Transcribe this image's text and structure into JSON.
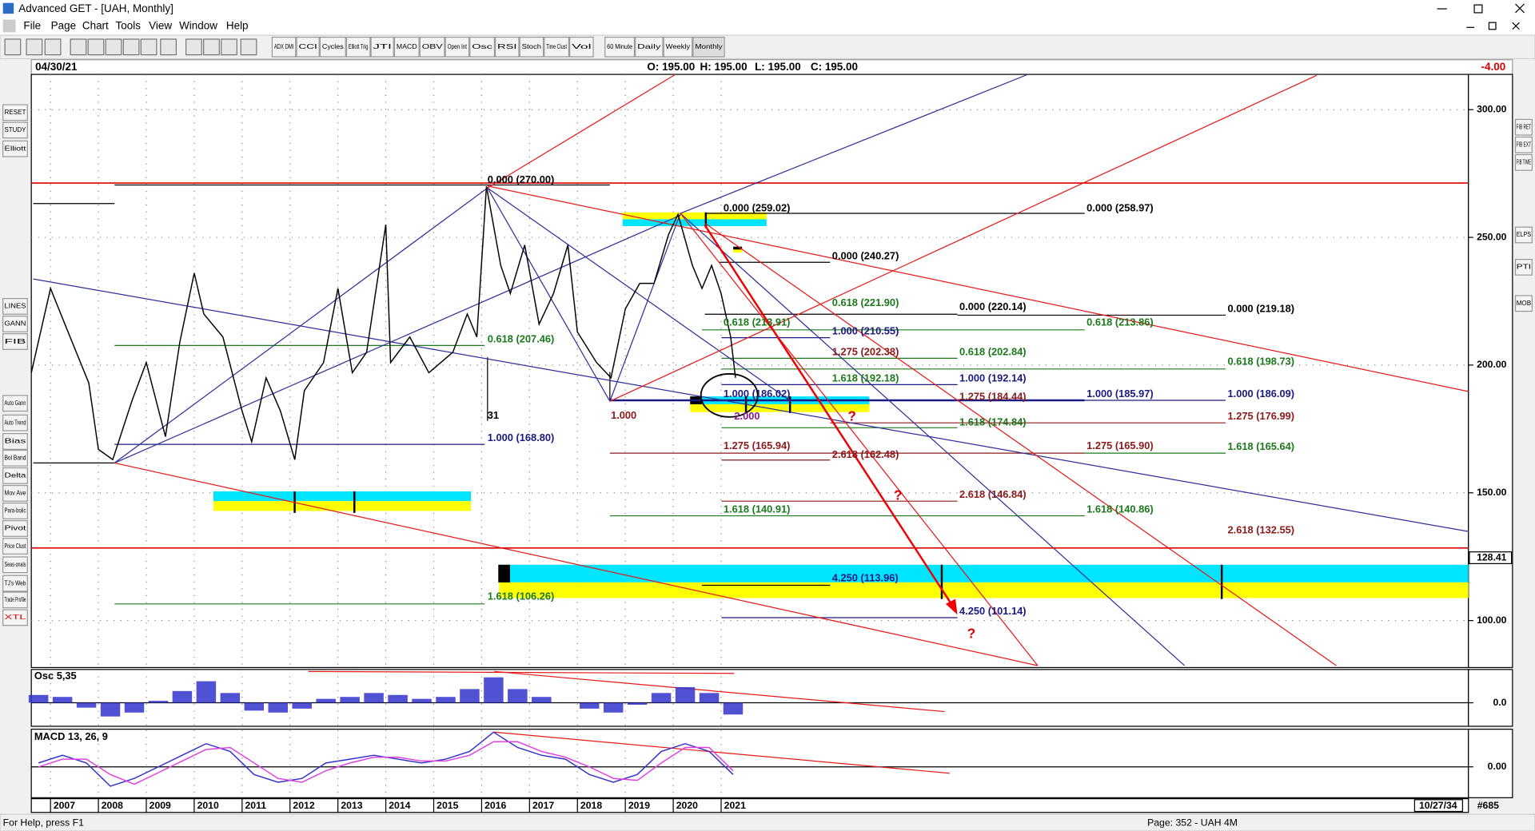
{
  "window": {
    "title": "Advanced GET - [UAH, Monthly]",
    "menu": [
      "File",
      "Page",
      "Chart",
      "Tools",
      "View",
      "Window",
      "Help"
    ]
  },
  "toolbar": {
    "buttons": [
      "ADX DMI",
      "CCI",
      "Cycles",
      "Elliott Trig",
      "JTI",
      "MACD",
      "OBV",
      "Open Int",
      "Osc",
      "RSI",
      "Stoch",
      "Time Clust",
      "Vol",
      "60 Minute",
      "Daily",
      "Weekly",
      "Monthly"
    ]
  },
  "left_toolbar": [
    "RESET",
    "STUDY",
    "Elliott",
    "LINES",
    "GANN",
    "FIB",
    "Auto Gann",
    "Auto Trend",
    "Bias",
    "Bol Band",
    "Delta",
    "Mov Ave",
    "Para-bolic",
    "Pivot",
    "Price Clust",
    "Seas-onals",
    "TJ's Web",
    "Trade Profile",
    "XTL"
  ],
  "right_toolbar": [
    "FIB RET",
    "FIB EXT",
    "FIB TIME",
    "ELPS",
    "PTI",
    "MOB"
  ],
  "header": {
    "date": "04/30/21",
    "open": "O: 195.00",
    "high": "H: 195.00",
    "low": "L: 195.00",
    "close": "C: 195.00",
    "change": "-4.00"
  },
  "chart_data": [
    {
      "type": "line",
      "color": "#000000",
      "x": [
        2006.6,
        2007.0,
        2007.3,
        2007.8,
        2008.0,
        2008.3,
        2008.7,
        2009.0,
        2009.4,
        2009.7,
        2010.0,
        2010.2,
        2010.6,
        2011.0,
        2011.2,
        2011.5,
        2011.8,
        2012.1,
        2012.3,
        2012.7,
        2013.0,
        2013.3,
        2013.6,
        2014.0,
        2014.1,
        2014.5,
        2014.9,
        2015.4,
        2015.7,
        2015.9,
        2016.1,
        2016.4,
        2016.6,
        2016.9,
        2017.2,
        2017.5,
        2017.8,
        2018.0,
        2018.4,
        2018.7,
        2019.0,
        2019.3,
        2019.6,
        2019.9,
        2020.1,
        2020.4,
        2020.6,
        2020.8,
        2021.0,
        2021.2,
        2021.3
      ],
      "values": [
        197,
        230,
        216,
        193,
        167,
        163,
        186,
        201,
        172,
        209,
        236,
        220,
        211,
        182,
        170,
        195,
        182,
        163,
        190,
        201,
        230,
        197,
        205,
        255,
        201,
        211,
        197,
        205,
        220,
        211,
        270,
        239,
        228,
        247,
        216,
        228,
        247,
        213,
        201,
        195,
        222,
        232,
        232,
        251,
        259,
        239,
        230,
        239,
        228,
        211,
        195
      ],
      "xlim": [
        2006.6,
        2036.6
      ],
      "xticks": [
        2007,
        2008,
        2009,
        2010,
        2011,
        2012,
        2013,
        2014,
        2015,
        2016,
        2017,
        2018,
        2019,
        2020,
        2021
      ],
      "ylim": [
        81.6,
        313.8
      ],
      "yticks": [
        {
          "value": 100,
          "label": "100.00"
        },
        {
          "value": 150,
          "label": "150.00"
        },
        {
          "value": 200,
          "label": "200.00"
        },
        {
          "value": 250,
          "label": "250.00"
        },
        {
          "value": 300,
          "label": "300.00"
        }
      ],
      "grid": true,
      "price_marker": 128.41
    },
    {
      "type": "bar",
      "title": "Osc 5,35",
      "color": "#3333cc",
      "x": [
        2006.75,
        2007.25,
        2007.75,
        2008.25,
        2008.75,
        2009.25,
        2009.75,
        2010.25,
        2010.75,
        2011.25,
        2011.75,
        2012.25,
        2012.75,
        2013.25,
        2013.75,
        2014.25,
        2014.75,
        2015.25,
        2015.75,
        2016.25,
        2016.75,
        2017.25,
        2017.75,
        2018.25,
        2018.75,
        2019.25,
        2019.75,
        2020.25,
        2020.75,
        2021.25
      ],
      "values": [
        8,
        6,
        -5,
        -14,
        -10,
        2,
        12,
        22,
        10,
        -8,
        -10,
        -6,
        4,
        6,
        10,
        8,
        4,
        6,
        14,
        26,
        14,
        6,
        0,
        -6,
        -10,
        -2,
        10,
        16,
        10,
        -12
      ],
      "ylim": [
        -24,
        34
      ],
      "yticks": [
        {
          "value": 0,
          "label": "0.0"
        }
      ]
    },
    {
      "type": "line",
      "title": "MACD 13, 26, 9",
      "x": [
        2006.75,
        2007.25,
        2007.75,
        2008.25,
        2008.75,
        2009.25,
        2009.75,
        2010.25,
        2010.75,
        2011.25,
        2011.75,
        2012.25,
        2012.75,
        2013.25,
        2013.75,
        2014.25,
        2014.75,
        2015.25,
        2015.75,
        2016.25,
        2016.75,
        2017.25,
        2017.75,
        2018.25,
        2018.75,
        2019.25,
        2019.75,
        2020.25,
        2020.75,
        2021.25
      ],
      "series": [
        {
          "color": "#3333cc",
          "values": [
            2,
            6,
            2,
            -10,
            -6,
            0,
            6,
            12,
            8,
            -4,
            -8,
            -6,
            2,
            4,
            6,
            4,
            2,
            4,
            8,
            18,
            10,
            6,
            4,
            -4,
            -8,
            -4,
            8,
            12,
            8,
            -4
          ]
        },
        {
          "color": "#e040e0",
          "values": [
            0,
            4,
            4,
            -4,
            -9,
            -3,
            3,
            9,
            10,
            2,
            -6,
            -8,
            -2,
            2,
            5,
            5,
            3,
            3,
            6,
            13,
            13,
            8,
            5,
            0,
            -6,
            -7,
            2,
            10,
            10,
            -2
          ]
        }
      ],
      "ylim": [
        -16,
        19
      ],
      "yticks": [
        {
          "value": 0,
          "label": "0.00"
        }
      ]
    }
  ],
  "annotations": [
    {
      "text": "0.000 (270.00)",
      "color": "#000000"
    },
    {
      "text": "0.000 (259.02)",
      "color": "#000000"
    },
    {
      "text": "0.000 (258.97)",
      "color": "#000000"
    },
    {
      "text": "0.000 (240.27)",
      "color": "#000000"
    },
    {
      "text": "0.618 (221.90)",
      "color": "#1a7a1a"
    },
    {
      "text": "0.000 (220.14)",
      "color": "#000000"
    },
    {
      "text": "0.000 (219.18)",
      "color": "#000000"
    },
    {
      "text": "0.618 (213.91)",
      "color": "#1a7a1a"
    },
    {
      "text": "0.618 (213.86)",
      "color": "#1a7a1a"
    },
    {
      "text": "1.000 (210.55)",
      "color": "#1a1a80"
    },
    {
      "text": "0.618 (207.46)",
      "color": "#1a7a1a"
    },
    {
      "text": "1.275 (202.38)",
      "color": "#8b1a1a"
    },
    {
      "text": "0.618 (202.84)",
      "color": "#1a7a1a"
    },
    {
      "text": "0.618 (198.73)",
      "color": "#1a7a1a"
    },
    {
      "text": "1.618 (192.18)",
      "color": "#1a7a1a"
    },
    {
      "text": "1.000 (192.14)",
      "color": "#1a1a80"
    },
    {
      "text": "1.000 (186.02)",
      "color": "#1a1a80"
    },
    {
      "text": "1.275 (184.44)",
      "color": "#8b1a1a"
    },
    {
      "text": "1.000 (185.97)",
      "color": "#1a1a80"
    },
    {
      "text": "1.000 (186.09)",
      "color": "#1a1a80"
    },
    {
      "text": "31",
      "color": "#000000"
    },
    {
      "text": "1.000",
      "color": "#8b1a1a"
    },
    {
      "text": "2.000",
      "color": "#8b1a8b"
    },
    {
      "text": "1.618 (174.84)",
      "color": "#1a7a1a"
    },
    {
      "text": "1.275 (176.99)",
      "color": "#8b1a1a"
    },
    {
      "text": "1.000 (168.80)",
      "color": "#1a1a80"
    },
    {
      "text": "1.275 (165.94)",
      "color": "#8b1a1a"
    },
    {
      "text": "2.618 (162.48)",
      "color": "#8b1a1a"
    },
    {
      "text": "1.275 (165.90)",
      "color": "#8b1a1a"
    },
    {
      "text": "1.618 (165.64)",
      "color": "#1a7a1a"
    },
    {
      "text": "2.618 (146.84)",
      "color": "#8b1a1a"
    },
    {
      "text": "1.618 (140.91)",
      "color": "#1a7a1a"
    },
    {
      "text": "1.618 (140.86)",
      "color": "#1a7a1a"
    },
    {
      "text": "2.618 (132.55)",
      "color": "#8b1a1a"
    },
    {
      "text": "4.250 (113.96)",
      "color": "#1a1a80"
    },
    {
      "text": "1.618 (106.26)",
      "color": "#1a7a1a"
    },
    {
      "text": "4.250 (101.14)",
      "color": "#1a1a80"
    },
    {
      "text": "?",
      "color": "#dd0000"
    },
    {
      "text": "?",
      "color": "#dd0000"
    },
    {
      "text": "?",
      "color": "#dd0000"
    }
  ],
  "footer": {
    "end_date": "10/27/34",
    "bar_count": "#685"
  },
  "status": {
    "help": "For Help, press F1",
    "page": "Page: 352 - UAH 4M"
  }
}
